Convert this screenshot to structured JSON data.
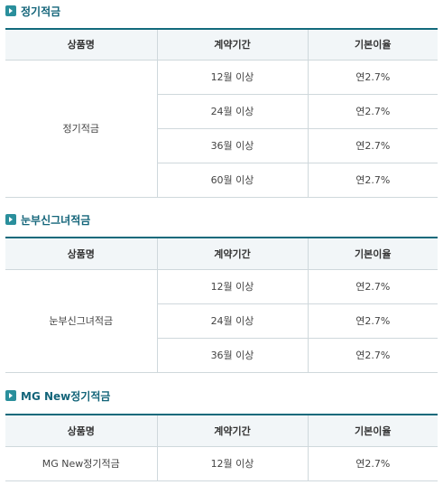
{
  "sections": [
    {
      "title": "정기적금",
      "headers": [
        "상품명",
        "계약기간",
        "기본이율"
      ],
      "product": "정기적금",
      "rows": [
        {
          "period": "12월 이상",
          "rate": "연2.7%"
        },
        {
          "period": "24월 이상",
          "rate": "연2.7%"
        },
        {
          "period": "36월 이상",
          "rate": "연2.7%"
        },
        {
          "period": "60월 이상",
          "rate": "연2.7%"
        }
      ]
    },
    {
      "title": "눈부신그녀적금",
      "headers": [
        "상품명",
        "계약기간",
        "기본이율"
      ],
      "product": "눈부신그녀적금",
      "rows": [
        {
          "period": "12월 이상",
          "rate": "연2.7%"
        },
        {
          "period": "24월 이상",
          "rate": "연2.7%"
        },
        {
          "period": "36월 이상",
          "rate": "연2.7%"
        }
      ]
    },
    {
      "title": "MG New정기적금",
      "headers": [
        "상품명",
        "계약기간",
        "기본이율"
      ],
      "product": "MG New정기적금",
      "rows": [
        {
          "period": "12월 이상",
          "rate": "연2.7%"
        }
      ]
    }
  ]
}
